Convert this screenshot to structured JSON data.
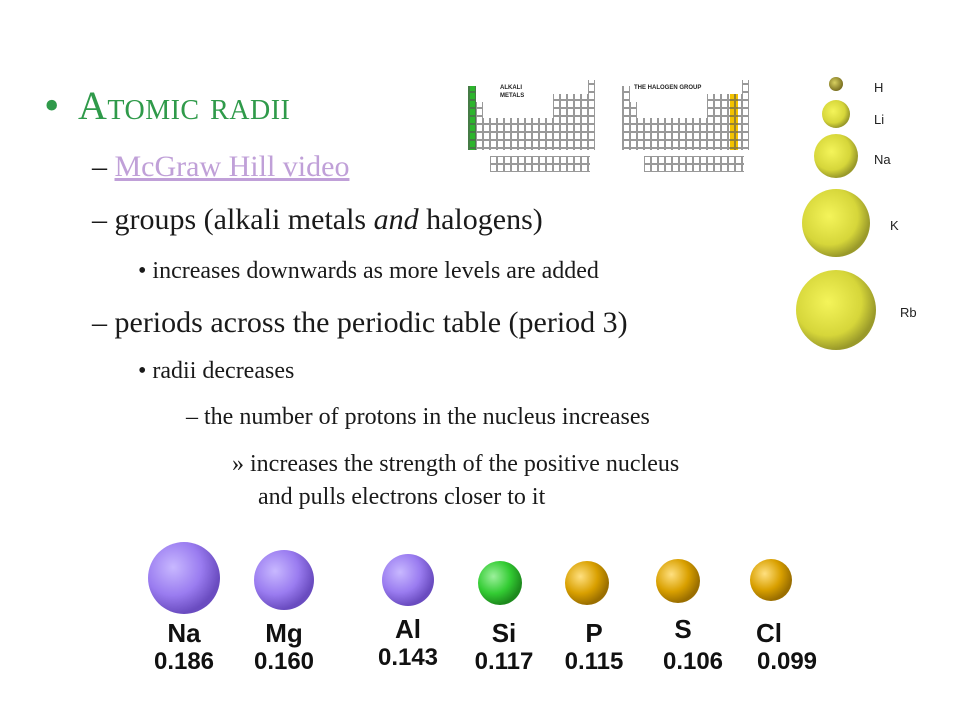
{
  "slide": {
    "bullet": "•",
    "title": "Atomic radii",
    "items": [
      {
        "marker": "–",
        "text": "McGraw Hill video"
      },
      {
        "marker": "–",
        "text_a": "groups (alkali metals ",
        "text_em": "and",
        "text_b": " halogens)"
      },
      {
        "marker": "•",
        "text": "increases downwards as more levels are added"
      },
      {
        "marker": "–",
        "text": "periods across the periodic table (period 3)"
      },
      {
        "marker": "•",
        "text": "radii decreases"
      },
      {
        "marker": "–",
        "text": "the number of protons in the nucleus increases"
      },
      {
        "marker": "»",
        "line1": "increases the strength of the positive nucleus",
        "line2": "and pulls electrons closer to it"
      }
    ]
  },
  "periodic_tables": {
    "alkali_label_1": "ALKALI",
    "alkali_label_2": "METALS",
    "halogen_label": "THE HALOGEN GROUP",
    "alkali_color": "#2db52d",
    "halogen_color": "#f2c200"
  },
  "group1_spheres": [
    "H",
    "Li",
    "Na",
    "K",
    "Rb"
  ],
  "period3": [
    {
      "symbol": "Na",
      "radius": "0.186",
      "color": "#9a7cf0"
    },
    {
      "symbol": "Mg",
      "radius": "0.160",
      "color": "#9a7cf0"
    },
    {
      "symbol": "Al",
      "radius": "0.143",
      "color": "#9a7cf0"
    },
    {
      "symbol": "Si",
      "radius": "0.117",
      "color": "#33cc33"
    },
    {
      "symbol": "P",
      "radius": "0.115",
      "color": "#d9a000"
    },
    {
      "symbol": "S",
      "radius": "0.106",
      "color": "#d9a000"
    },
    {
      "symbol": "Cl",
      "radius": "0.099",
      "color": "#d9a000"
    }
  ]
}
